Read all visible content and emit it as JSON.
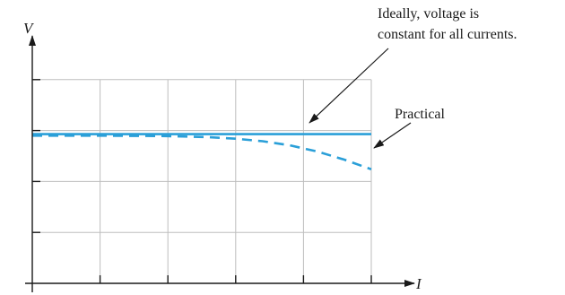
{
  "chart_data": {
    "type": "line",
    "xlabel": "I",
    "ylabel": "V",
    "xlim": [
      0,
      5
    ],
    "ylim": [
      0,
      5
    ],
    "grid": true,
    "x_ticks": [
      1,
      2,
      3,
      4,
      5
    ],
    "y_ticks": [
      1,
      2,
      3,
      4
    ],
    "series": [
      {
        "style": "solid",
        "color": "#2a9fd8",
        "x": [
          0,
          5
        ],
        "y": [
          2.93,
          2.93
        ]
      },
      {
        "style": "dashed",
        "color": "#2a9fd8",
        "x": [
          0,
          1,
          2,
          2.6,
          3,
          3.4,
          3.8,
          4.2,
          4.6,
          5
        ],
        "y": [
          2.9,
          2.9,
          2.89,
          2.87,
          2.84,
          2.79,
          2.71,
          2.59,
          2.43,
          2.24
        ]
      }
    ],
    "annotations": [
      {
        "lines": [
          "Ideally, voltage is",
          "constant for all currents."
        ],
        "points_to": [
          4.0,
          2.93
        ]
      },
      {
        "lines": [
          "Practical"
        ],
        "points_to": [
          4.95,
          2.27
        ]
      }
    ]
  }
}
